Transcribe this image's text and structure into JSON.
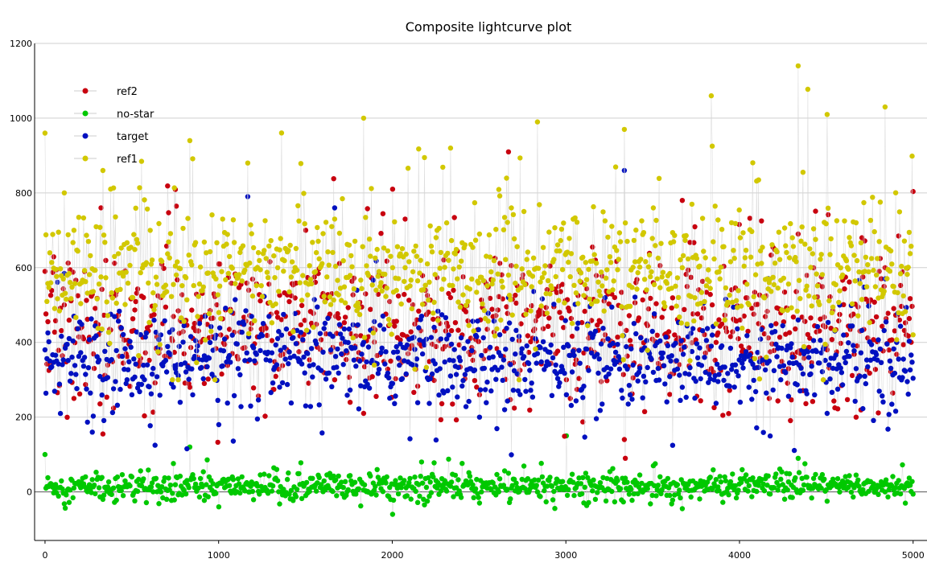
{
  "chart_data": {
    "type": "scatter",
    "title": "Composite lightcurve plot",
    "xlabel": "",
    "ylabel": "",
    "xlim": [
      -60,
      5080
    ],
    "ylim": [
      -130,
      1200
    ],
    "x_ticks": [
      0,
      1000,
      2000,
      3000,
      4000,
      5000
    ],
    "y_ticks": [
      0,
      200,
      400,
      600,
      800,
      1000,
      1200
    ],
    "grid": true,
    "legend_position": "top-left",
    "n_points_per_series": 5000,
    "series": [
      {
        "name": "ref2",
        "color": "#c8000f",
        "line_color": "#d6d6d6",
        "mean": 440,
        "spread": 150,
        "min": 90,
        "max": 910,
        "values_sample": [
          590,
          250,
          155,
          430,
          520,
          280,
          610,
          350,
          480,
          700,
          300,
          210,
          810,
          390,
          520,
          260,
          910,
          470,
          300,
          620,
          140,
          560,
          780,
          330,
          460,
          250,
          690,
          380,
          200,
          600
        ]
      },
      {
        "name": "no-star",
        "color": "#00c800",
        "line_color": "#d6d6d6",
        "mean": 15,
        "spread": 30,
        "min": -70,
        "max": 150,
        "values_sample": [
          100,
          10,
          -20,
          40,
          0,
          120,
          -40,
          20,
          60,
          -10,
          30,
          5,
          -60,
          80,
          15,
          -30,
          50,
          0,
          150,
          -20,
          25,
          70,
          -45,
          10,
          35,
          -5,
          90,
          -25,
          45,
          0
        ]
      },
      {
        "name": "target",
        "color": "#0010c0",
        "line_color": "#d6d6d6",
        "mean": 350,
        "spread": 110,
        "min": 0,
        "max": 870,
        "values_sample": [
          380,
          470,
          300,
          260,
          420,
          330,
          180,
          790,
          340,
          230,
          760,
          400,
          290,
          470,
          310,
          200,
          520,
          370,
          260,
          430,
          860,
          320,
          280,
          390,
          240,
          350,
          460,
          210,
          330,
          570
        ]
      },
      {
        "name": "ref1",
        "color": "#d2c800",
        "line_color": "#d6d6d6",
        "mean": 590,
        "spread": 140,
        "min": 300,
        "max": 1140,
        "values_sample": [
          960,
          700,
          860,
          520,
          620,
          940,
          480,
          880,
          650,
          560,
          730,
          1000,
          600,
          540,
          920,
          690,
          580,
          990,
          640,
          510,
          970,
          760,
          600,
          1060,
          680,
          560,
          1140,
          1010,
          720,
          1030
        ]
      }
    ]
  }
}
